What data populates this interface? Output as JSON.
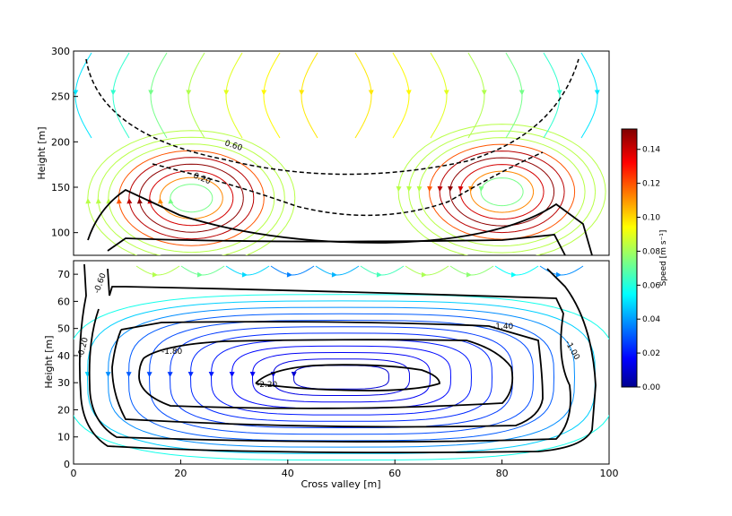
{
  "chart_data": [
    {
      "type": "streamplot",
      "panel": "upper",
      "xlabel": "",
      "ylabel": "Height [m]",
      "xlim": [
        0,
        100
      ],
      "ylim": [
        75,
        300
      ],
      "yticks": [
        100,
        150,
        200,
        250,
        300
      ],
      "grid": false,
      "contour_labels": [
        "0.60",
        "0.20"
      ],
      "vortices": [
        {
          "name": "left-cell",
          "x": 22,
          "y": 138,
          "rotation": "clockwise"
        },
        {
          "name": "right-cell",
          "x": 80,
          "y": 145,
          "rotation": "counterclockwise"
        }
      ]
    },
    {
      "type": "streamplot",
      "panel": "lower",
      "xlabel": "Cross valley [m]",
      "ylabel": "Height [m]",
      "xlim": [
        0,
        100
      ],
      "ylim": [
        0,
        75
      ],
      "xticks": [
        0,
        20,
        40,
        60,
        80,
        100
      ],
      "yticks": [
        0,
        10,
        20,
        30,
        40,
        50,
        60,
        70
      ],
      "grid": false,
      "contour_labels": [
        "-0.60",
        "-0.20",
        "-1.80",
        "-2.20",
        "-1.40",
        "-1.00"
      ]
    }
  ],
  "colorbar": {
    "label": "Speed [m s⁻¹]",
    "ticks": [
      "0.00",
      "0.02",
      "0.04",
      "0.06",
      "0.08",
      "0.10",
      "0.12",
      "0.14"
    ],
    "range": [
      0,
      0.152
    ],
    "colormap": "jet"
  },
  "colors": {
    "low": "#00008f",
    "mid": "#7fff7f",
    "high": "#800000",
    "contour": "#000000"
  }
}
